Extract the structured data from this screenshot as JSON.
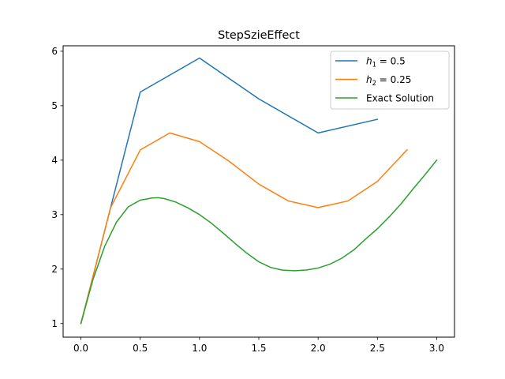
{
  "chart_data": {
    "type": "line",
    "title": "StepSzieEffect",
    "xlabel": "",
    "ylabel": "",
    "xlim": [
      -0.15,
      3.15
    ],
    "ylim": [
      0.75,
      6.1
    ],
    "grid": false,
    "legend_position": "top-right",
    "xticks": [
      0.0,
      0.5,
      1.0,
      1.5,
      2.0,
      2.5,
      3.0
    ],
    "xtick_labels": [
      "0.0",
      "0.5",
      "1.0",
      "1.5",
      "2.0",
      "2.5",
      "3.0"
    ],
    "yticks": [
      1,
      2,
      3,
      4,
      5,
      6
    ],
    "ytick_labels": [
      "1",
      "2",
      "3",
      "4",
      "5",
      "6"
    ],
    "series": [
      {
        "name": "h1 = 0.5",
        "label_main": "h",
        "label_sub": "1",
        "label_rest": " = 0.5",
        "color": "#1f77b4",
        "x": [
          0.0,
          0.5,
          1.0,
          1.5,
          2.0,
          2.5
        ],
        "y": [
          1.0,
          5.25,
          5.875,
          5.125,
          4.5,
          4.75
        ]
      },
      {
        "name": "h2 = 0.25",
        "label_main": "h",
        "label_sub": "2",
        "label_rest": " = 0.25",
        "color": "#ff7f0e",
        "x": [
          0.0,
          0.25,
          0.5,
          0.75,
          1.0,
          1.25,
          1.5,
          1.75,
          2.0,
          2.25,
          2.5,
          2.75
        ],
        "y": [
          1.0,
          3.125,
          4.1875,
          4.5,
          4.34,
          3.98,
          3.56,
          3.25,
          3.13,
          3.25,
          3.61,
          4.19
        ]
      },
      {
        "name": "Exact Solution",
        "label_main": "Exact Solution",
        "label_sub": "",
        "label_rest": "",
        "color": "#2ca02c",
        "x": [
          0.0,
          0.1,
          0.2,
          0.3,
          0.4,
          0.5,
          0.6,
          0.65,
          0.7,
          0.8,
          0.9,
          1.0,
          1.1,
          1.2,
          1.3,
          1.4,
          1.5,
          1.6,
          1.7,
          1.8,
          1.9,
          2.0,
          2.1,
          2.2,
          2.3,
          2.4,
          2.5,
          2.6,
          2.7,
          2.8,
          2.9,
          3.0
        ],
        "y": [
          1.0,
          1.797,
          2.416,
          2.863,
          3.144,
          3.266,
          3.305,
          3.31,
          3.296,
          3.23,
          3.127,
          3.0,
          2.843,
          2.66,
          2.47,
          2.29,
          2.133,
          2.03,
          1.98,
          1.97,
          1.983,
          2.02,
          2.09,
          2.2,
          2.35,
          2.55,
          2.74,
          2.96,
          3.2,
          3.47,
          3.73,
          4.0
        ]
      }
    ]
  }
}
